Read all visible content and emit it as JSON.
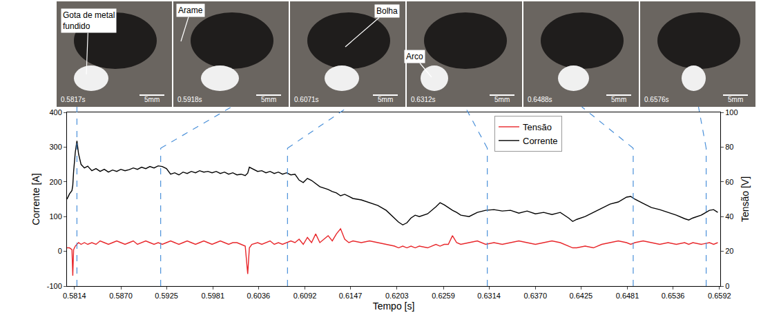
{
  "chart_data": {
    "type": "line",
    "xlabel": "Tempo [s]",
    "ylabel": "Corrente [A]",
    "y2label": "Tensão [V]",
    "x": [
      0.5805,
      0.5808,
      0.5811,
      0.5812,
      0.5813,
      0.5815,
      0.5817,
      0.5819,
      0.5822,
      0.5826,
      0.583,
      0.5835,
      0.584,
      0.5845,
      0.585,
      0.5855,
      0.586,
      0.5865,
      0.587,
      0.5875,
      0.588,
      0.5885,
      0.589,
      0.5895,
      0.59,
      0.5905,
      0.591,
      0.5915,
      0.592,
      0.5925,
      0.593,
      0.5935,
      0.594,
      0.5945,
      0.595,
      0.5955,
      0.596,
      0.5965,
      0.597,
      0.5975,
      0.598,
      0.5985,
      0.599,
      0.5995,
      0.6,
      0.6005,
      0.601,
      0.6015,
      0.602,
      0.6023,
      0.6025,
      0.6028,
      0.6035,
      0.604,
      0.6045,
      0.605,
      0.6055,
      0.606,
      0.6065,
      0.607,
      0.6075,
      0.608,
      0.6085,
      0.609,
      0.6095,
      0.61,
      0.6105,
      0.611,
      0.6115,
      0.612,
      0.6125,
      0.613,
      0.6135,
      0.614,
      0.6145,
      0.615,
      0.616,
      0.617,
      0.618,
      0.619,
      0.62,
      0.6205,
      0.621,
      0.6215,
      0.622,
      0.6225,
      0.623,
      0.624,
      0.625,
      0.6255,
      0.626,
      0.6265,
      0.627,
      0.6275,
      0.628,
      0.629,
      0.63,
      0.631,
      0.632,
      0.633,
      0.634,
      0.635,
      0.636,
      0.637,
      0.638,
      0.639,
      0.64,
      0.641,
      0.6415,
      0.642,
      0.643,
      0.644,
      0.645,
      0.646,
      0.647,
      0.648,
      0.6485,
      0.649,
      0.65,
      0.651,
      0.652,
      0.653,
      0.654,
      0.655,
      0.6555,
      0.656,
      0.657,
      0.658,
      0.6585,
      0.659
    ],
    "series": [
      {
        "name": "Tensão",
        "color": "#e8262a",
        "axis": "y2",
        "line_style": "solid",
        "values": [
          22,
          22,
          21,
          6,
          21,
          23,
          24,
          25,
          24,
          25,
          24,
          25,
          24,
          26,
          25,
          24,
          25,
          26,
          25,
          24,
          25,
          26,
          24,
          25,
          26,
          25,
          24,
          25,
          24,
          25,
          26,
          25,
          24,
          25,
          26,
          25,
          24,
          25,
          26,
          25,
          24,
          25,
          26,
          25,
          24,
          25,
          25,
          24,
          23,
          7,
          22,
          24,
          25,
          24,
          25,
          26,
          24,
          25,
          24,
          25,
          26,
          25,
          27,
          24,
          28,
          25,
          30,
          25,
          27,
          29,
          26,
          30,
          33,
          27,
          25,
          26,
          25,
          26,
          25,
          24,
          23,
          22,
          23,
          22,
          23,
          22,
          23,
          22,
          24,
          23,
          24,
          24,
          29,
          25,
          24,
          25,
          26,
          24,
          25,
          24,
          25,
          26,
          25,
          24,
          25,
          26,
          25,
          23,
          22,
          22,
          23,
          22,
          24,
          25,
          26,
          25,
          24,
          25,
          26,
          25,
          24,
          25,
          24,
          25,
          24,
          25,
          24,
          25,
          24,
          25
        ]
      },
      {
        "name": "Corrente",
        "color": "#000000",
        "line_style": "solid",
        "values": [
          150,
          165,
          175,
          190,
          230,
          285,
          318,
          280,
          250,
          240,
          245,
          232,
          238,
          230,
          236,
          228,
          234,
          230,
          236,
          232,
          235,
          240,
          236,
          242,
          238,
          244,
          240,
          246,
          244,
          238,
          222,
          226,
          220,
          228,
          224,
          230,
          226,
          232,
          228,
          230,
          226,
          230,
          224,
          228,
          222,
          226,
          220,
          222,
          218,
          225,
          242,
          238,
          230,
          232,
          226,
          230,
          224,
          228,
          222,
          226,
          220,
          222,
          205,
          198,
          210,
          204,
          195,
          186,
          182,
          178,
          172,
          168,
          160,
          164,
          158,
          152,
          148,
          140,
          132,
          118,
          95,
          84,
          76,
          82,
          96,
          104,
          100,
          108,
          128,
          140,
          134,
          126,
          118,
          112,
          104,
          100,
          112,
          118,
          120,
          116,
          118,
          110,
          116,
          108,
          112,
          106,
          112,
          96,
          86,
          92,
          100,
          112,
          124,
          136,
          142,
          156,
          158,
          150,
          138,
          126,
          120,
          112,
          104,
          94,
          90,
          96,
          104,
          118,
          120,
          112
        ]
      }
    ],
    "xlim": [
      0.5805,
      0.6593
    ],
    "xticks": [
      0.5814,
      {
        "value": 0.587,
        "label": "0.5870"
      },
      0.5925,
      0.5981,
      0.6036,
      0.6092,
      0.6147,
      0.6203,
      0.6259,
      0.6314,
      {
        "value": 0.637,
        "label": "0.6370"
      },
      0.6425,
      0.6481,
      0.6536,
      0.6592
    ],
    "ylim": [
      -100,
      400
    ],
    "yticks": [
      -100,
      0,
      100,
      200,
      300,
      400
    ],
    "y2lim": [
      0,
      100
    ],
    "y2ticks": [
      0,
      20,
      40,
      60,
      80,
      100
    ],
    "grid": false,
    "legend": "upper right",
    "frames": [
      {
        "time": 0.5817,
        "label": "0.5817s",
        "scale_bar": "5mm"
      },
      {
        "time": 0.5918,
        "label": "0.5918s",
        "scale_bar": "5mm"
      },
      {
        "time": 0.6071,
        "label": "0.6071s",
        "scale_bar": "5mm"
      },
      {
        "time": 0.6312,
        "label": "0.6312s",
        "scale_bar": "5mm"
      },
      {
        "time": 0.6488,
        "label": "0.6488s",
        "scale_bar": "5mm"
      },
      {
        "time": 0.6576,
        "label": "0.6576s",
        "scale_bar": "5mm"
      }
    ],
    "annotations": [
      "Gota de metal fundido",
      "Arame",
      "Bolha",
      "Arco"
    ]
  }
}
